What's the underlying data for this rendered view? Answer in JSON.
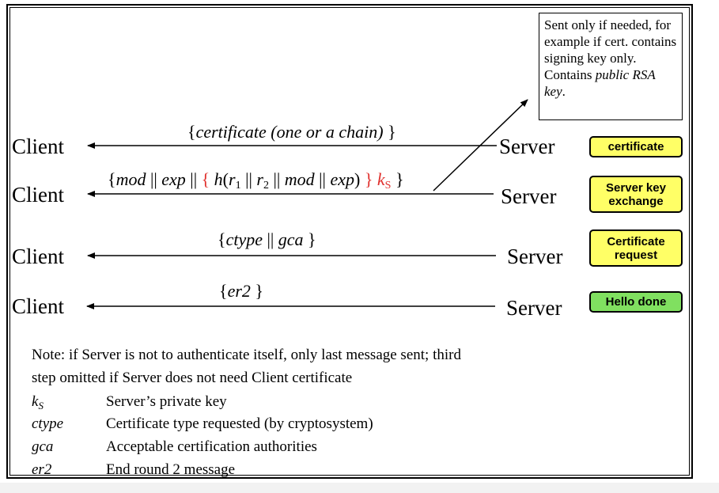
{
  "callout": {
    "text": "Sent only if needed, for example if cert. contains signing key only. Contains",
    "italic": "public RSA key",
    "tail": "."
  },
  "rows": [
    {
      "client": "Client",
      "server": "Server",
      "badge_lines": [
        "certificate"
      ],
      "badge_color": "#ffff66",
      "message_parts": [
        {
          "t": "{",
          "s": "n"
        },
        {
          "t": "certificate (one or a chain)",
          "s": "i"
        },
        {
          "t": " }",
          "s": "n"
        }
      ]
    },
    {
      "client": "Client",
      "server": "Server",
      "badge_lines": [
        "Server key",
        "exchange"
      ],
      "badge_color": "#ffff66",
      "message_parts": [
        {
          "t": "{",
          "s": "n"
        },
        {
          "t": "mod",
          "s": "i"
        },
        {
          "t": " || ",
          "s": "n"
        },
        {
          "t": "exp",
          "s": "i"
        },
        {
          "t": " || ",
          "s": "n"
        },
        {
          "t": "{ ",
          "s": "red"
        },
        {
          "t": "h",
          "s": "i"
        },
        {
          "t": "(",
          "s": "n"
        },
        {
          "t": "r",
          "s": "i"
        },
        {
          "t": "1",
          "s": "sub"
        },
        {
          "t": " || ",
          "s": "n"
        },
        {
          "t": "r",
          "s": "i"
        },
        {
          "t": "2",
          "s": "sub"
        },
        {
          "t": " || ",
          "s": "n"
        },
        {
          "t": "mod",
          "s": "i"
        },
        {
          "t": " || ",
          "s": "n"
        },
        {
          "t": "exp",
          "s": "i"
        },
        {
          "t": ") ",
          "s": "n"
        },
        {
          "t": "} ",
          "s": "red"
        },
        {
          "t": "k",
          "s": "redi"
        },
        {
          "t": "S",
          "s": "redsub"
        },
        {
          "t": " }",
          "s": "n"
        }
      ]
    },
    {
      "client": "Client",
      "server": "Server",
      "badge_lines": [
        "Certificate",
        "request"
      ],
      "badge_color": "#ffff66",
      "message_parts": [
        {
          "t": "{",
          "s": "n"
        },
        {
          "t": "ctype",
          "s": "i"
        },
        {
          "t": " || ",
          "s": "n"
        },
        {
          "t": "gca",
          "s": "i"
        },
        {
          "t": " }",
          "s": "n"
        }
      ]
    },
    {
      "client": "Client",
      "server": "Server",
      "badge_lines": [
        "Hello done"
      ],
      "badge_color": "#80e060",
      "message_parts": [
        {
          "t": "{",
          "s": "n"
        },
        {
          "t": "er2",
          "s": "i"
        },
        {
          "t": " }",
          "s": "n"
        }
      ]
    }
  ],
  "note": {
    "line1": "Note: if Server is not to authenticate itself, only last message sent; third",
    "line2": "step omitted if Server does not need Client certificate"
  },
  "glossary": [
    {
      "term": "k",
      "sub": "S",
      "definition": "Server’s private key"
    },
    {
      "term": "ctype",
      "sub": "",
      "definition": "Certificate type requested (by cryptosystem)"
    },
    {
      "term": "gca",
      "sub": "",
      "definition": "Acceptable certification authorities"
    },
    {
      "term": "er2",
      "sub": "",
      "definition": "End round 2 message"
    }
  ],
  "colors": {
    "badge_yellow": "#ffff66",
    "badge_green": "#80e060",
    "highlight_red": "#e0302d"
  }
}
